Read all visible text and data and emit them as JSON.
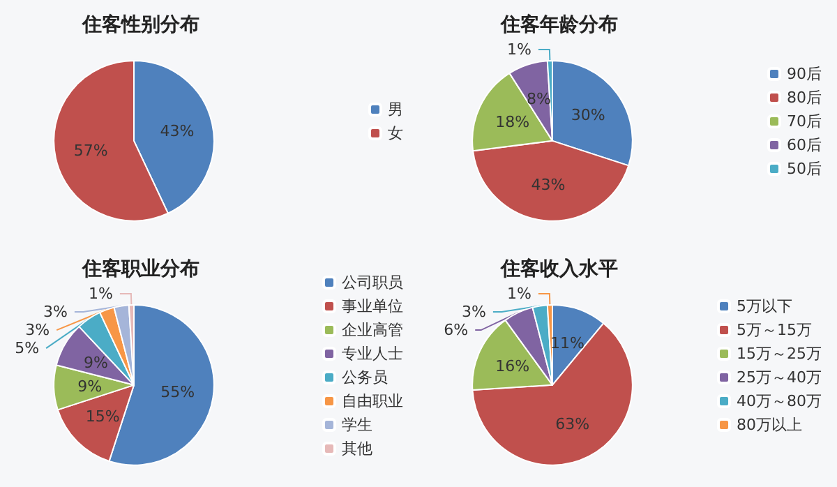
{
  "chart_data": [
    {
      "type": "pie",
      "title": "住客性别分布",
      "categories": [
        "男",
        "女"
      ],
      "values": [
        43,
        57
      ],
      "colors": [
        "#4f81bd",
        "#c0504d"
      ],
      "value_labels": [
        "43%",
        "57%"
      ],
      "legend": "right"
    },
    {
      "type": "pie",
      "title": "住客年龄分布",
      "categories": [
        "90后",
        "80后",
        "70后",
        "60后",
        "50后"
      ],
      "values": [
        30,
        43,
        18,
        8,
        1
      ],
      "colors": [
        "#4f81bd",
        "#c0504d",
        "#9bbb59",
        "#8064a2",
        "#4bacc6"
      ],
      "value_labels": [
        "30%",
        "43%",
        "18%",
        "8%",
        "1%"
      ],
      "legend": "right"
    },
    {
      "type": "pie",
      "title": "住客职业分布",
      "categories": [
        "公司职员",
        "事业单位",
        "企业高管",
        "专业人士",
        "公务员",
        "自由职业",
        "学生",
        "其他"
      ],
      "values": [
        55,
        15,
        9,
        9,
        5,
        3,
        3,
        1
      ],
      "colors": [
        "#4f81bd",
        "#c0504d",
        "#9bbb59",
        "#8064a2",
        "#4bacc6",
        "#f79646",
        "#a5b5d9",
        "#e6b9b8"
      ],
      "value_labels": [
        "55%",
        "15%",
        "9%",
        "9%",
        "5%",
        "3%",
        "3%",
        "1%"
      ],
      "legend": "right"
    },
    {
      "type": "pie",
      "title": "住客收入水平",
      "categories": [
        "5万以下",
        "5万～15万",
        "15万～25万",
        "25万～40万",
        "40万～80万",
        "80万以上"
      ],
      "values": [
        11,
        63,
        16,
        6,
        3,
        1
      ],
      "colors": [
        "#4f81bd",
        "#c0504d",
        "#9bbb59",
        "#8064a2",
        "#4bacc6",
        "#f79646"
      ],
      "value_labels": [
        "11%",
        "63%",
        "16%",
        "6%",
        "3%",
        "1%"
      ],
      "legend": "right"
    }
  ]
}
